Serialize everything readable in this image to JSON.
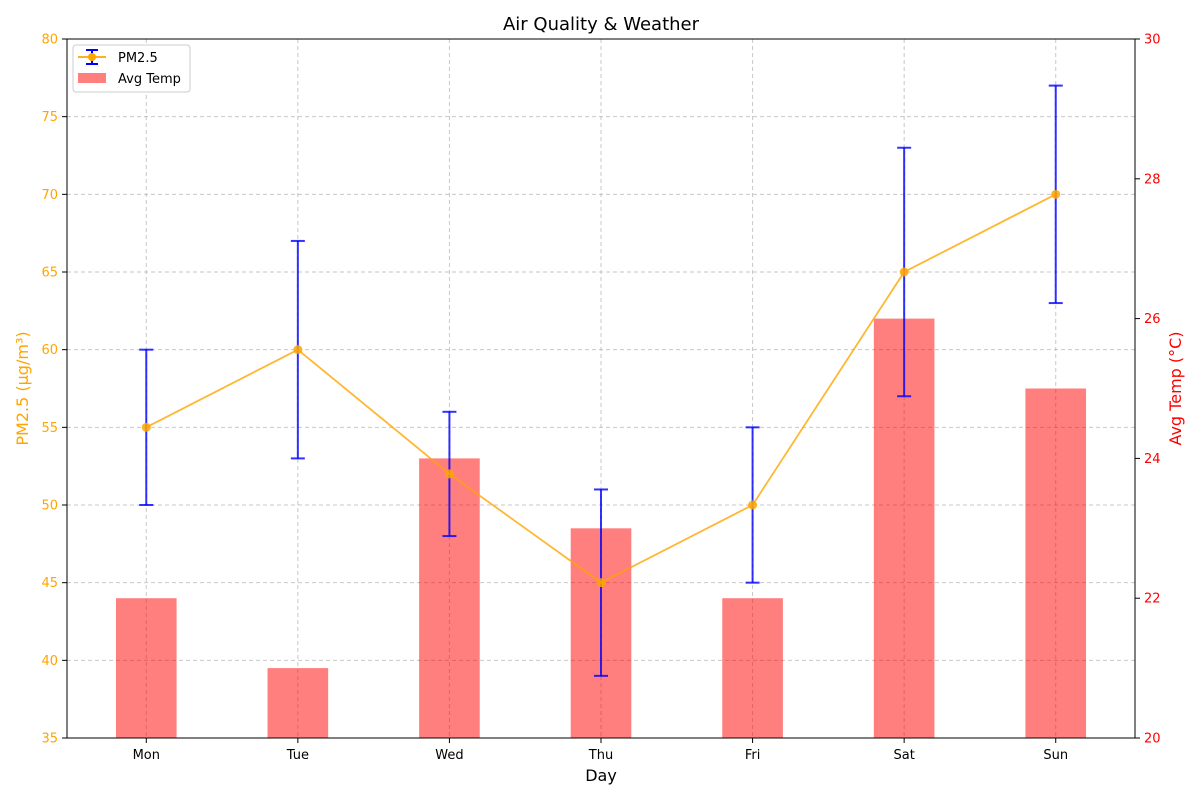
{
  "chart_data": {
    "type": "bar",
    "title": "Air Quality & Weather",
    "xlabel": "Day",
    "categories": [
      "Mon",
      "Tue",
      "Wed",
      "Thu",
      "Fri",
      "Sat",
      "Sun"
    ],
    "series": [
      {
        "name": "PM2.5",
        "type": "line",
        "axis": "left",
        "values": [
          55,
          60,
          52,
          45,
          50,
          65,
          70
        ],
        "error_low": [
          50,
          53,
          48,
          39,
          45,
          57,
          63
        ],
        "error_high": [
          60,
          67,
          56,
          51,
          55,
          73,
          77
        ],
        "color": "#FFA500",
        "error_color": "#0000FF"
      },
      {
        "name": "Avg Temp",
        "type": "bar",
        "axis": "right",
        "values": [
          22,
          21,
          24,
          23,
          22,
          26,
          25
        ],
        "color": "#FF0000"
      }
    ],
    "left_axis": {
      "label": "PM2.5 (μg/m³)",
      "range": [
        35,
        80
      ],
      "ticks": [
        35,
        40,
        45,
        50,
        55,
        60,
        65,
        70,
        75,
        80
      ],
      "color": "#FFA500"
    },
    "right_axis": {
      "label": "Avg Temp (°C)",
      "range": [
        20,
        30
      ],
      "ticks": [
        20,
        22,
        24,
        26,
        28,
        30
      ],
      "color": "#FF0000"
    },
    "grid": true,
    "legend_position": "top-left"
  }
}
